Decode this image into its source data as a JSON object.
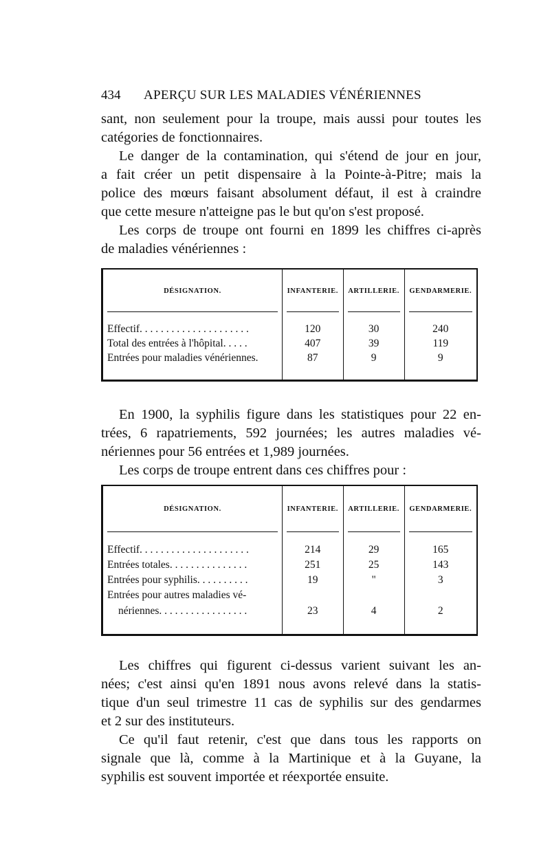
{
  "header": {
    "page_number": "434",
    "running_title": "APERÇU SUR LES MALADIES VÉNÉRIENNES"
  },
  "para_block_1": [
    {
      "text": "sant, non seulement pour la troupe, mais aussi pour toutes les",
      "indent": false,
      "last": false
    },
    {
      "text": "catégories de fonctionnaires.",
      "indent": false,
      "last": true
    },
    {
      "text": "Le danger de la contamination, qui s'étend de jour en jour,",
      "indent": true,
      "last": false
    },
    {
      "text": "a fait créer un petit dispensaire à la Pointe-à-Pitre; mais la",
      "indent": false,
      "last": false
    },
    {
      "text": "police des mœurs faisant absolument défaut, il est à craindre",
      "indent": false,
      "last": false
    },
    {
      "text": "que cette mesure n'atteigne pas le but qu'on s'est proposé.",
      "indent": false,
      "last": true
    },
    {
      "text": "Les corps de troupe ont fourni en 1899 les chiffres ci-après",
      "indent": true,
      "last": false
    },
    {
      "text": "de maladies vénériennes :",
      "indent": false,
      "last": true
    }
  ],
  "table_1": {
    "headers": [
      "DÉSIGNATION.",
      "INFANTERIE.",
      "ARTILLERIE.",
      "GENDARMERIE."
    ],
    "rows": [
      [
        "Effectif. . . . . . . . . . . . . . . . . . . . .",
        "120",
        "30",
        "240"
      ],
      [
        "Total des entrées à l'hôpital. . . . .",
        "407",
        "39",
        "119"
      ],
      [
        "Entrées pour maladies vénériennes.",
        "87",
        "9",
        "9"
      ]
    ]
  },
  "para_block_2": [
    {
      "text": "En 1900, la syphilis figure dans les statistiques pour 22 en-",
      "indent": true,
      "last": false
    },
    {
      "text": "trées, 6 rapatriements, 592 journées; les autres maladies vé-",
      "indent": false,
      "last": false
    },
    {
      "text": "nériennes pour 56 entrées et 1,989 journées.",
      "indent": false,
      "last": true
    },
    {
      "text": "Les corps de troupe entrent dans ces chiffres pour :",
      "indent": true,
      "last": true
    }
  ],
  "table_2": {
    "headers": [
      "DÉSIGNATION.",
      "INFANTERIE.",
      "ARTILLERIE.",
      "GENDARMERIE."
    ],
    "rows": [
      [
        "Effectif. . . . . . . . . . . . . . . . . . . . .",
        "214",
        "29",
        "165"
      ],
      [
        "Entrées totales. . . . . . . . . . . . . . .",
        "251",
        "25",
        "143"
      ],
      [
        "Entrées pour syphilis. . . . . . . . . .",
        "19",
        "\"",
        "3"
      ],
      [
        "Entrées pour autres maladies vé-",
        "",
        "",
        ""
      ],
      [
        "    nériennes. . . . . . . . . . . . . . . . .",
        "23",
        "4",
        "2"
      ]
    ]
  },
  "para_block_3": [
    {
      "text": "Les chiffres qui figurent ci-dessus varient suivant les an-",
      "indent": true,
      "last": false
    },
    {
      "text": "nées; c'est ainsi qu'en 1891 nous avons relevé dans la statis-",
      "indent": false,
      "last": false
    },
    {
      "text": "tique d'un seul trimestre 11 cas de syphilis sur des gendarmes",
      "indent": false,
      "last": false
    },
    {
      "text": "et 2 sur des instituteurs.",
      "indent": false,
      "last": true
    },
    {
      "text": "Ce qu'il faut retenir, c'est que dans tous les rapports on",
      "indent": true,
      "last": false
    },
    {
      "text": "signale que là, comme à la Martinique et à la Guyane, la",
      "indent": false,
      "last": false
    },
    {
      "text": "syphilis est souvent importée et réexportée ensuite.",
      "indent": false,
      "last": true
    }
  ]
}
